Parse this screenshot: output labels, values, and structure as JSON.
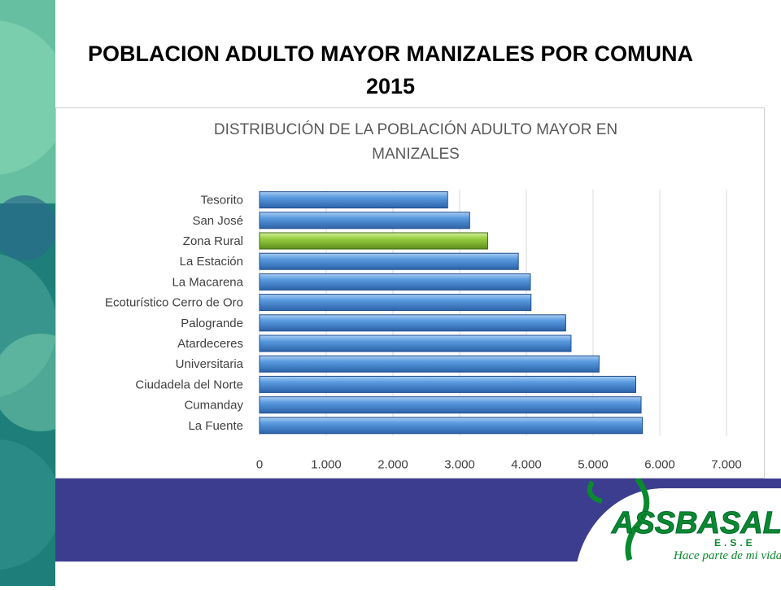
{
  "slide": {
    "title": "POBLACION ADULTO MAYOR MANIZALES POR COMUNA 2015"
  },
  "logo": {
    "name": "ASSBASALUD",
    "subtitle": "E.S.E",
    "tagline": "Hace parte de mi vida"
  },
  "colors": {
    "bar_default": "#4a8fd4",
    "bar_highlight": "#8fc63c",
    "bottom_band": "#3d3d8f",
    "logo_green": "#0a8a2e"
  },
  "chart_data": {
    "type": "bar",
    "orientation": "horizontal",
    "title": "DISTRIBUCIÓN DE LA POBLACIÓN ADULTO MAYOR EN MANIZALES",
    "categories": [
      "Tesorito",
      "San José",
      "Zona Rural",
      "La Estación",
      "La Macarena",
      "Ecoturístico Cerro de Oro",
      "Palogrande",
      "Atardeceres",
      "Universitaria",
      "Ciudadela del Norte",
      "Cumanday",
      "La Fuente"
    ],
    "values": [
      2820,
      3150,
      3420,
      3880,
      4060,
      4070,
      4590,
      4670,
      5090,
      5640,
      5720,
      5740
    ],
    "highlight_category": "Zona Rural",
    "xlim": [
      0,
      7000
    ],
    "xticks": [
      0,
      1000,
      2000,
      3000,
      4000,
      5000,
      6000,
      7000
    ],
    "xtick_labels": [
      "0",
      "1.000",
      "2.000",
      "3.000",
      "4.000",
      "5.000",
      "6.000",
      "7.000"
    ],
    "grid": "vertical",
    "legend": "none"
  }
}
